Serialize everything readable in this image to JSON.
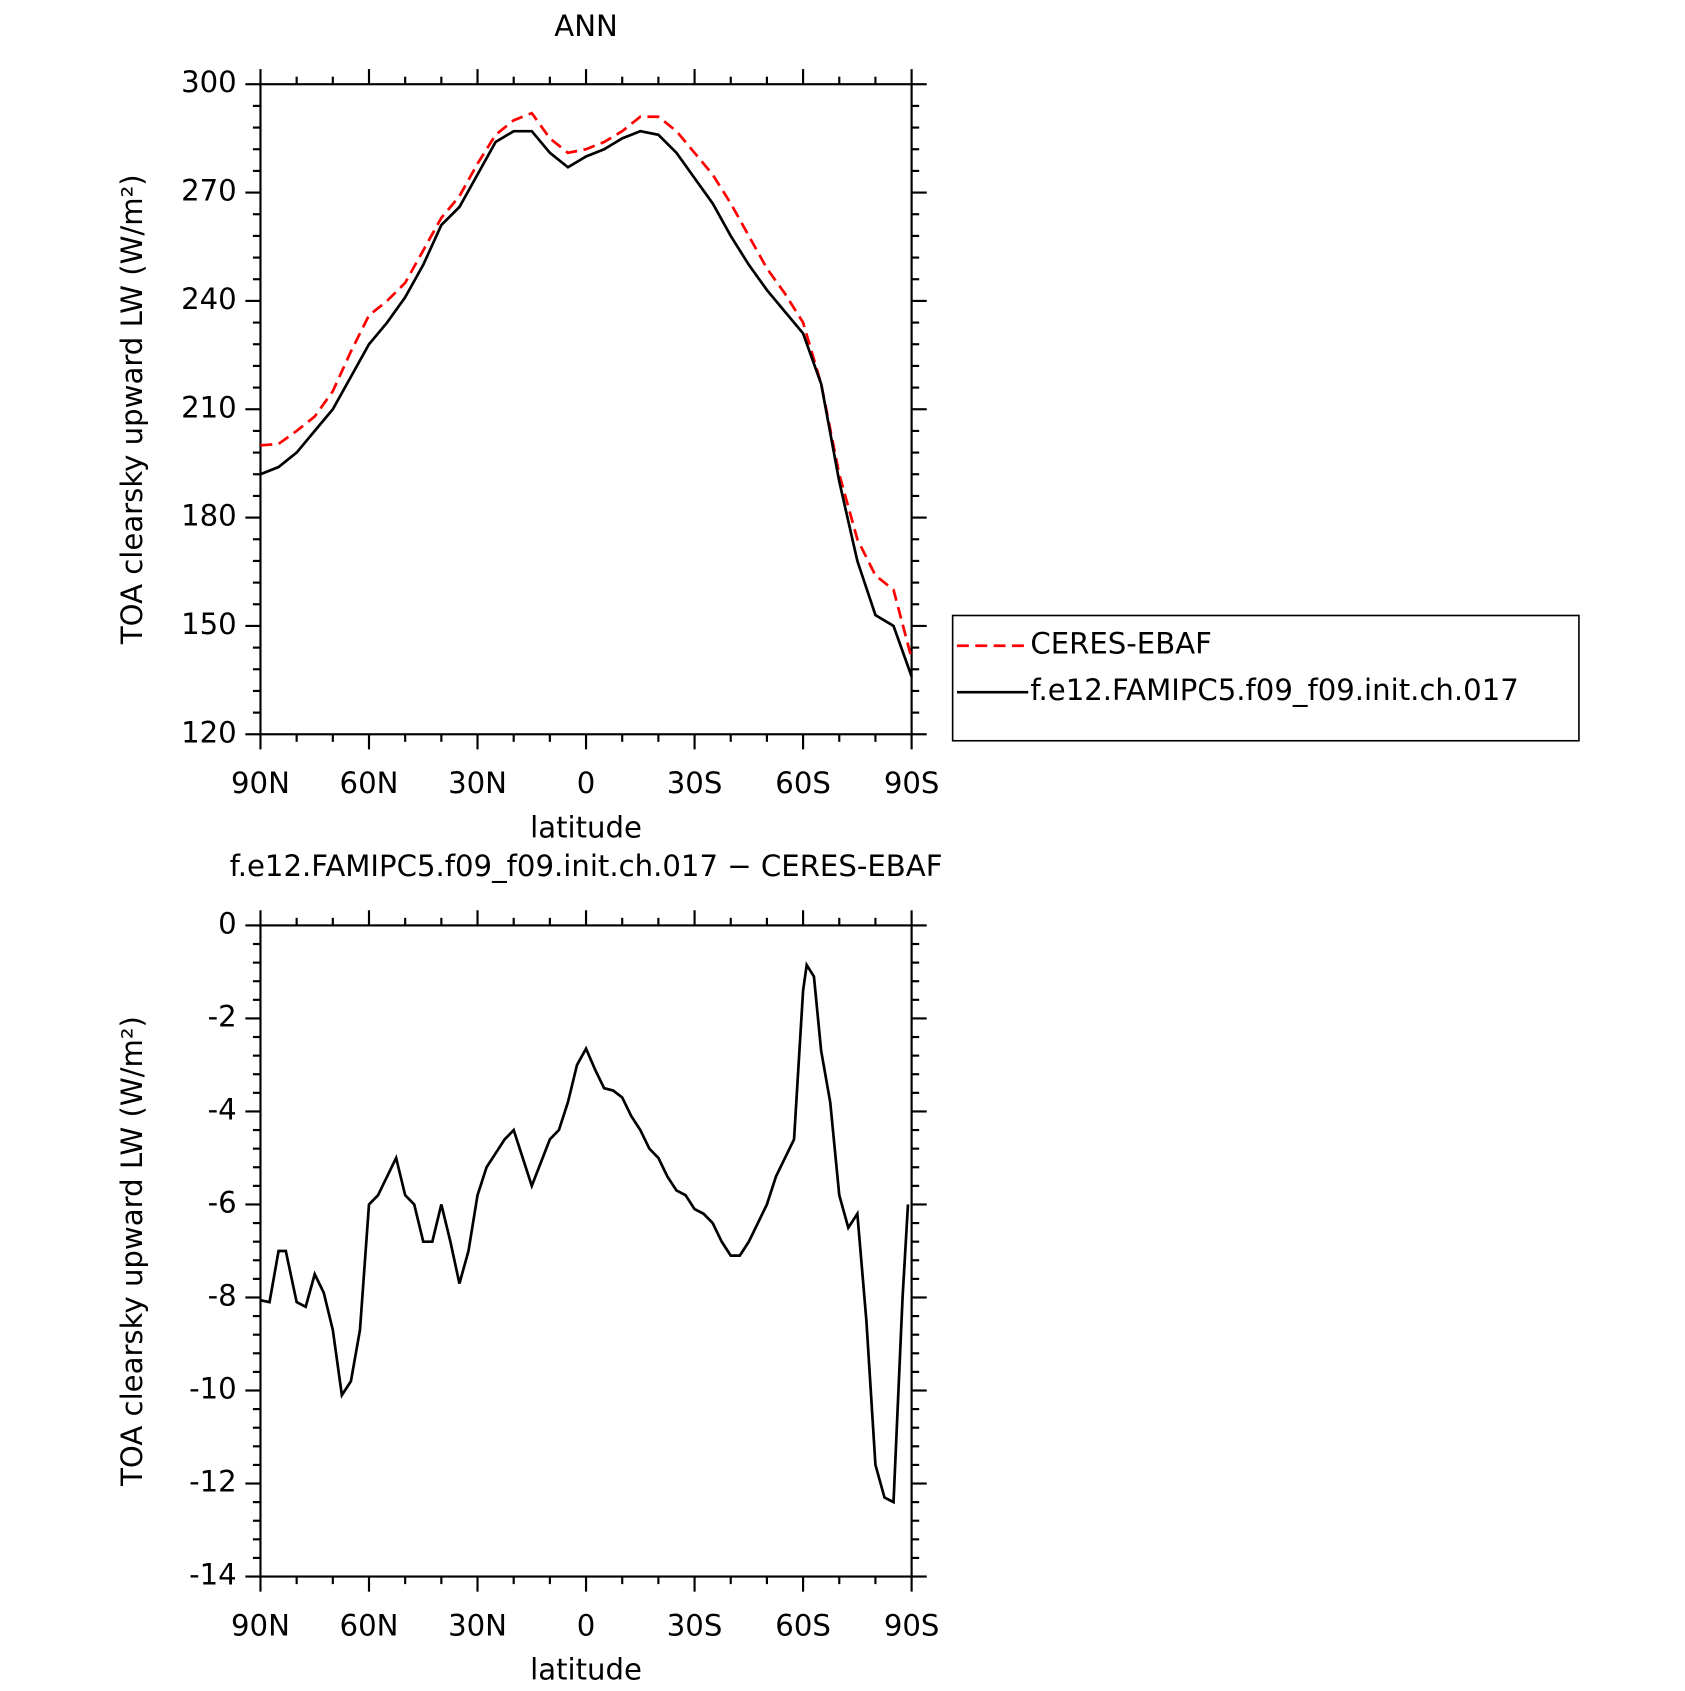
{
  "chart_data": [
    {
      "type": "line",
      "title": "ANN",
      "xlabel": "latitude",
      "ylabel": "TOA clearsky upward LW (W/m²)",
      "x": [
        90,
        85,
        80,
        75,
        70,
        65,
        60,
        55,
        50,
        45,
        40,
        35,
        30,
        25,
        20,
        15,
        10,
        5,
        0,
        -5,
        -10,
        -15,
        -20,
        -25,
        -30,
        -35,
        -40,
        -45,
        -50,
        -55,
        -60,
        -65,
        -70,
        -75,
        -80,
        -85,
        -90
      ],
      "series": [
        {
          "name": "CERES-EBAF",
          "color": "#ff0000",
          "linestyle": "dashed",
          "values": [
            200,
            200.4,
            204,
            208,
            215,
            226,
            236,
            240,
            245,
            254,
            263,
            269,
            278,
            286,
            290,
            292,
            285,
            281,
            282,
            284,
            287,
            291,
            291,
            287,
            281,
            275,
            267,
            258,
            249,
            242,
            234,
            217,
            192,
            174,
            164,
            160,
            141
          ]
        },
        {
          "name": "f.e12.FAMIPC5.f09_f09.init.ch.017",
          "color": "#000000",
          "linestyle": "solid",
          "values": [
            192,
            194,
            198,
            204,
            210,
            219,
            228,
            234,
            241,
            250,
            261,
            266,
            275,
            284,
            287,
            287,
            281,
            277,
            280,
            282,
            285,
            287,
            286,
            281,
            274,
            267,
            258,
            250,
            243,
            237,
            231,
            217,
            190,
            168,
            153,
            150,
            136
          ]
        }
      ],
      "xlim": [
        90,
        -90
      ],
      "xticks": [
        {
          "value": 90,
          "label": "90N"
        },
        {
          "value": 60,
          "label": "60N"
        },
        {
          "value": 30,
          "label": "30N"
        },
        0,
        {
          "value": -30,
          "label": "30S"
        },
        {
          "value": -60,
          "label": "60S"
        },
        {
          "value": -90,
          "label": "90S"
        }
      ],
      "ylim": [
        120,
        300
      ],
      "yticks": [
        120,
        150,
        180,
        210,
        240,
        270,
        300
      ],
      "legend": "right"
    },
    {
      "type": "line",
      "title": "f.e12.FAMIPC5.f09_f09.init.ch.017 − CERES-EBAF",
      "xlabel": "latitude",
      "ylabel": "TOA clearsky upward LW (W/m²)",
      "x": [
        90,
        87.5,
        85,
        83,
        80,
        77.5,
        75,
        72.5,
        70,
        67.5,
        65,
        62.5,
        60,
        57.5,
        55,
        52.5,
        50,
        47.5,
        45,
        42.5,
        40,
        37.5,
        35,
        32.5,
        30,
        27.5,
        25,
        22.5,
        20,
        17.5,
        15,
        12.5,
        10,
        7.5,
        5,
        2.5,
        0,
        -2.5,
        -5,
        -7.5,
        -10,
        -12.5,
        -15,
        -17.5,
        -20,
        -22.5,
        -25,
        -27.5,
        -30,
        -32.5,
        -35,
        -37.5,
        -40,
        -42.5,
        -45,
        -47.5,
        -50,
        -52.5,
        -55,
        -57.5,
        -60,
        -61,
        -63,
        -65,
        -67.5,
        -70,
        -72.5,
        -75,
        -77.5,
        -80,
        -82.5,
        -85,
        -87.5,
        -89
      ],
      "series": [
        {
          "name": "f.e12.FAMIPC5.f09_f09.init.ch.017 − CERES-EBAF",
          "color": "#000000",
          "linestyle": "solid",
          "values": [
            -8.06,
            -8.1,
            -7.0,
            -7.0,
            -8.1,
            -8.2,
            -7.5,
            -7.9,
            -8.7,
            -10.1,
            -9.8,
            -8.7,
            -6.0,
            -5.8,
            -5.4,
            -5.0,
            -5.8,
            -6.0,
            -6.8,
            -6.8,
            -6.0,
            -6.8,
            -7.7,
            -7.0,
            -5.8,
            -5.2,
            -4.9,
            -4.6,
            -4.4,
            -5.0,
            -5.6,
            -5.1,
            -4.6,
            -4.4,
            -3.8,
            -3.0,
            -2.65,
            -3.1,
            -3.5,
            -3.55,
            -3.7,
            -4.1,
            -4.4,
            -4.8,
            -5.0,
            -5.4,
            -5.7,
            -5.8,
            -6.1,
            -6.2,
            -6.4,
            -6.8,
            -7.1,
            -7.1,
            -6.8,
            -6.4,
            -6.0,
            -5.4,
            -5.0,
            -4.6,
            -1.4,
            -0.85,
            -1.1,
            -2.7,
            -3.8,
            -5.8,
            -6.5,
            -6.2,
            -8.5,
            -11.6,
            -12.3,
            -12.4,
            -8.0,
            -6.0
          ]
        }
      ],
      "xlim": [
        90,
        -90
      ],
      "xticks": [
        {
          "value": 90,
          "label": "90N"
        },
        {
          "value": 60,
          "label": "60N"
        },
        {
          "value": 30,
          "label": "30N"
        },
        0,
        {
          "value": -30,
          "label": "30S"
        },
        {
          "value": -60,
          "label": "60S"
        },
        {
          "value": -90,
          "label": "90S"
        }
      ],
      "ylim": [
        -14,
        0
      ],
      "yticks": [
        -14,
        -12,
        -10,
        -8,
        -6,
        -4,
        -2,
        0
      ]
    }
  ]
}
